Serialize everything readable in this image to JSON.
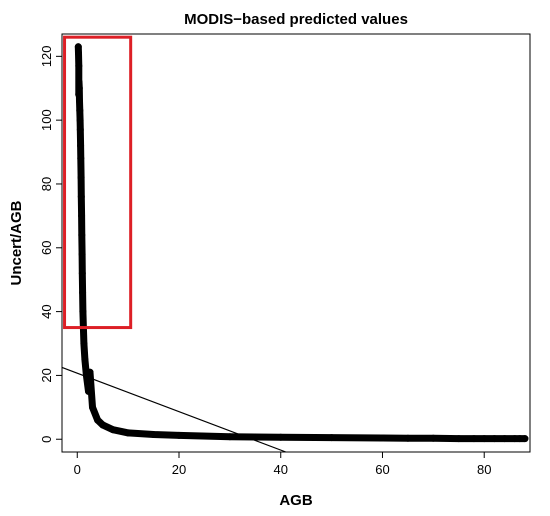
{
  "chart_data": {
    "type": "scatter",
    "title": "MODIS−based predicted values",
    "xlabel": "AGB",
    "ylabel": "Uncert/AGB",
    "xlim": [
      -3,
      89
    ],
    "ylim": [
      -4,
      127
    ],
    "xticks": [
      "0",
      "20",
      "40",
      "60",
      "80"
    ],
    "yticks": [
      "0",
      "20",
      "40",
      "60",
      "80",
      "100",
      "120"
    ],
    "grid": false,
    "series": [
      {
        "marker": "open-circle",
        "color": "#000000",
        "points": [
          [
            0.2,
            123
          ],
          [
            0.25,
            121
          ],
          [
            0.3,
            117
          ],
          [
            0.35,
            112
          ],
          [
            0.4,
            110
          ],
          [
            0.3,
            108
          ],
          [
            0.45,
            106
          ],
          [
            0.5,
            103
          ],
          [
            0.55,
            100
          ],
          [
            0.6,
            97
          ],
          [
            0.65,
            92
          ],
          [
            0.7,
            88
          ],
          [
            0.75,
            82
          ],
          [
            0.8,
            76
          ],
          [
            0.85,
            70
          ],
          [
            0.9,
            64
          ],
          [
            0.95,
            58
          ],
          [
            1.0,
            52
          ],
          [
            1.05,
            46
          ],
          [
            1.1,
            40
          ],
          [
            1.2,
            35
          ],
          [
            1.3,
            30
          ],
          [
            1.5,
            25
          ],
          [
            1.8,
            20
          ],
          [
            2.2,
            15
          ],
          [
            2.5,
            21
          ],
          [
            3.0,
            10
          ],
          [
            4.0,
            6
          ],
          [
            5.0,
            4.5
          ],
          [
            7.0,
            3
          ],
          [
            10.0,
            2
          ],
          [
            15.0,
            1.5
          ],
          [
            20.0,
            1.2
          ],
          [
            30.0,
            0.8
          ],
          [
            40.0,
            0.6
          ],
          [
            50.0,
            0.5
          ],
          [
            60.0,
            0.4
          ],
          [
            65.0,
            0.3
          ],
          [
            70.0,
            0.3
          ],
          [
            75.0,
            0.2
          ],
          [
            78.0,
            0.2
          ],
          [
            80.0,
            0.2
          ],
          [
            82.0,
            0.2
          ],
          [
            84.0,
            0.2
          ],
          [
            86.0,
            0.2
          ],
          [
            87.0,
            0.2
          ],
          [
            88.0,
            0.2
          ]
        ]
      }
    ],
    "reference_line": {
      "x": [
        -3,
        41
      ],
      "y": [
        22.5,
        -4
      ]
    },
    "highlight_box": {
      "x": [
        -2.5,
        10.5
      ],
      "y": [
        35,
        126
      ],
      "color": "#dd1f26"
    }
  }
}
